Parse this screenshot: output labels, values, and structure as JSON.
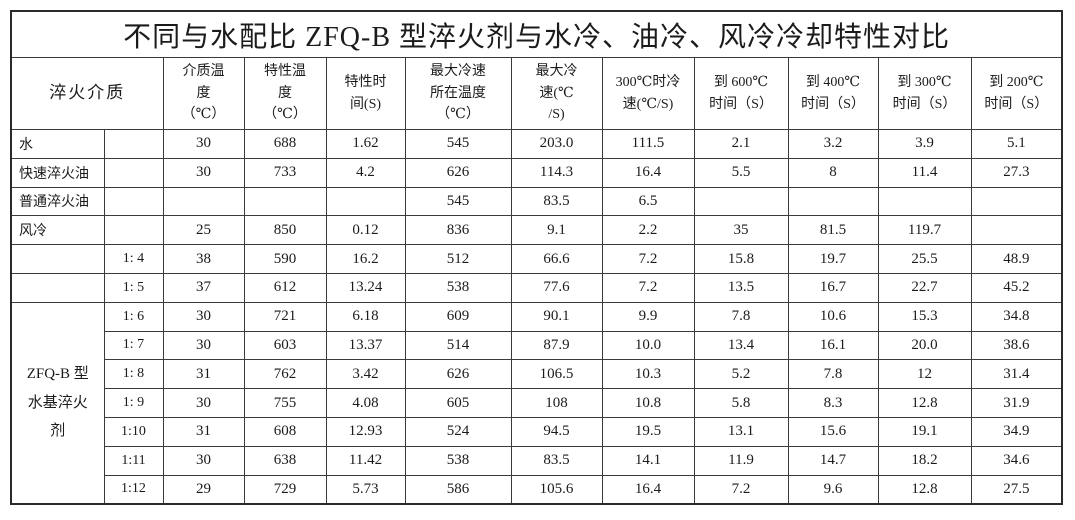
{
  "title": "不同与水配比 ZFQ-B 型淬火剂与水冷、油冷、风冷冷却特性对比",
  "table": {
    "medium_header": "淬火介质",
    "column_headers": [
      {
        "name": "col-medium-temperature",
        "lines": [
          "介质温",
          "度",
          "（℃）"
        ]
      },
      {
        "name": "col-characteristic-temp",
        "lines": [
          "特性温",
          "度",
          "（℃）"
        ]
      },
      {
        "name": "col-characteristic-time",
        "lines": [
          "特性时",
          "间(S)"
        ]
      },
      {
        "name": "col-max-coolrate-temp",
        "lines": [
          "最大冷速",
          "所在温度",
          "（℃）"
        ]
      },
      {
        "name": "col-max-coolrate",
        "lines": [
          "最大冷",
          "速(℃",
          "/S)"
        ]
      },
      {
        "name": "col-coolrate-at-300",
        "lines": [
          "300℃时冷",
          "速(℃/S)"
        ]
      },
      {
        "name": "col-time-to-600",
        "lines": [
          "到 600℃",
          "时间（S）"
        ]
      },
      {
        "name": "col-time-to-400",
        "lines": [
          "到 400℃",
          "时间（S）"
        ]
      },
      {
        "name": "col-time-to-300",
        "lines": [
          "到 300℃",
          "时间（S）"
        ]
      },
      {
        "name": "col-time-to-200",
        "lines": [
          "到 200℃",
          "时间（S）"
        ]
      }
    ],
    "rows": [
      {
        "medium": "水",
        "ratio": "",
        "values": [
          "30",
          "688",
          "1.62",
          "545",
          "203.0",
          "111.5",
          "2.1",
          "3.2",
          "3.9",
          "5.1"
        ]
      },
      {
        "medium": "快速淬火油",
        "ratio": "",
        "values": [
          "30",
          "733",
          "4.2",
          "626",
          "114.3",
          "16.4",
          "5.5",
          "8",
          "11.4",
          "27.3"
        ]
      },
      {
        "medium": "普通淬火油",
        "ratio": "",
        "values": [
          "",
          "",
          "",
          "545",
          "83.5",
          "6.5",
          "",
          "",
          "",
          ""
        ]
      },
      {
        "medium": "风冷",
        "ratio": "",
        "values": [
          "25",
          "850",
          "0.12",
          "836",
          "9.1",
          "2.2",
          "35",
          "81.5",
          "119.7",
          ""
        ]
      },
      {
        "medium": "",
        "ratio": "1: 4",
        "values": [
          "38",
          "590",
          "16.2",
          "512",
          "66.6",
          "7.2",
          "15.8",
          "19.7",
          "25.5",
          "48.9"
        ]
      },
      {
        "medium": "",
        "ratio": "1: 5",
        "values": [
          "37",
          "612",
          "13.24",
          "538",
          "77.6",
          "7.2",
          "13.5",
          "16.7",
          "22.7",
          "45.2"
        ]
      },
      {
        "medium": [
          "ZFQ-B 型",
          "水基淬火",
          "剂"
        ],
        "medium_rowspan": 7,
        "ratio": "1: 6",
        "values": [
          "30",
          "721",
          "6.18",
          "609",
          "90.1",
          "9.9",
          "7.8",
          "10.6",
          "15.3",
          "34.8"
        ]
      },
      {
        "ratio": "1: 7",
        "values": [
          "30",
          "603",
          "13.37",
          "514",
          "87.9",
          "10.0",
          "13.4",
          "16.1",
          "20.0",
          "38.6"
        ]
      },
      {
        "ratio": "1: 8",
        "values": [
          "31",
          "762",
          "3.42",
          "626",
          "106.5",
          "10.3",
          "5.2",
          "7.8",
          "12",
          "31.4"
        ]
      },
      {
        "ratio": "1: 9",
        "values": [
          "30",
          "755",
          "4.08",
          "605",
          "108",
          "10.8",
          "5.8",
          "8.3",
          "12.8",
          "31.9"
        ]
      },
      {
        "ratio": "1:10",
        "values": [
          "31",
          "608",
          "12.93",
          "524",
          "94.5",
          "19.5",
          "13.1",
          "15.6",
          "19.1",
          "34.9"
        ]
      },
      {
        "ratio": "1:11",
        "values": [
          "30",
          "638",
          "11.42",
          "538",
          "83.5",
          "14.1",
          "11.9",
          "14.7",
          "18.2",
          "34.6"
        ]
      },
      {
        "ratio": "1:12",
        "values": [
          "29",
          "729",
          "5.73",
          "586",
          "105.6",
          "16.4",
          "7.2",
          "9.6",
          "12.8",
          "27.5"
        ]
      }
    ]
  }
}
